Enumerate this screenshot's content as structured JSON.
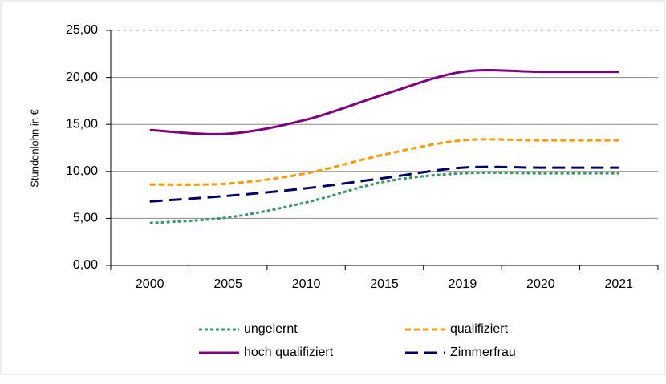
{
  "chart_data": {
    "type": "line",
    "y_label": "Stundenlohn in €",
    "categories": [
      "2000",
      "2005",
      "2010",
      "2015",
      "2019",
      "2020",
      "2021"
    ],
    "series": [
      {
        "name": "ungelernt",
        "color": "#339966",
        "values": [
          4.5,
          5.1,
          6.7,
          8.9,
          9.8,
          9.8,
          9.8
        ]
      },
      {
        "name": "qualifiziert",
        "color": "#ff9900",
        "values": [
          8.6,
          8.7,
          9.8,
          11.8,
          13.3,
          13.3,
          13.3
        ]
      },
      {
        "name": "hoch qualifiziert",
        "color": "#800080",
        "values": [
          14.4,
          14.0,
          15.5,
          18.2,
          20.6,
          20.6,
          20.6
        ]
      },
      {
        "name": "Zimmerfrau",
        "color": "#000066",
        "values": [
          6.8,
          7.4,
          8.2,
          9.3,
          10.4,
          10.4,
          10.4
        ]
      }
    ],
    "ylim": [
      0,
      25
    ],
    "yticks": [
      {
        "value": 0,
        "label": "0,00"
      },
      {
        "value": 5,
        "label": "5,00"
      },
      {
        "value": 10,
        "label": "10,00"
      },
      {
        "value": 15,
        "label": "15,00"
      },
      {
        "value": 20,
        "label": "20,00"
      },
      {
        "value": 25,
        "label": "25,00"
      }
    ],
    "grid": true,
    "legend": "bottom"
  }
}
